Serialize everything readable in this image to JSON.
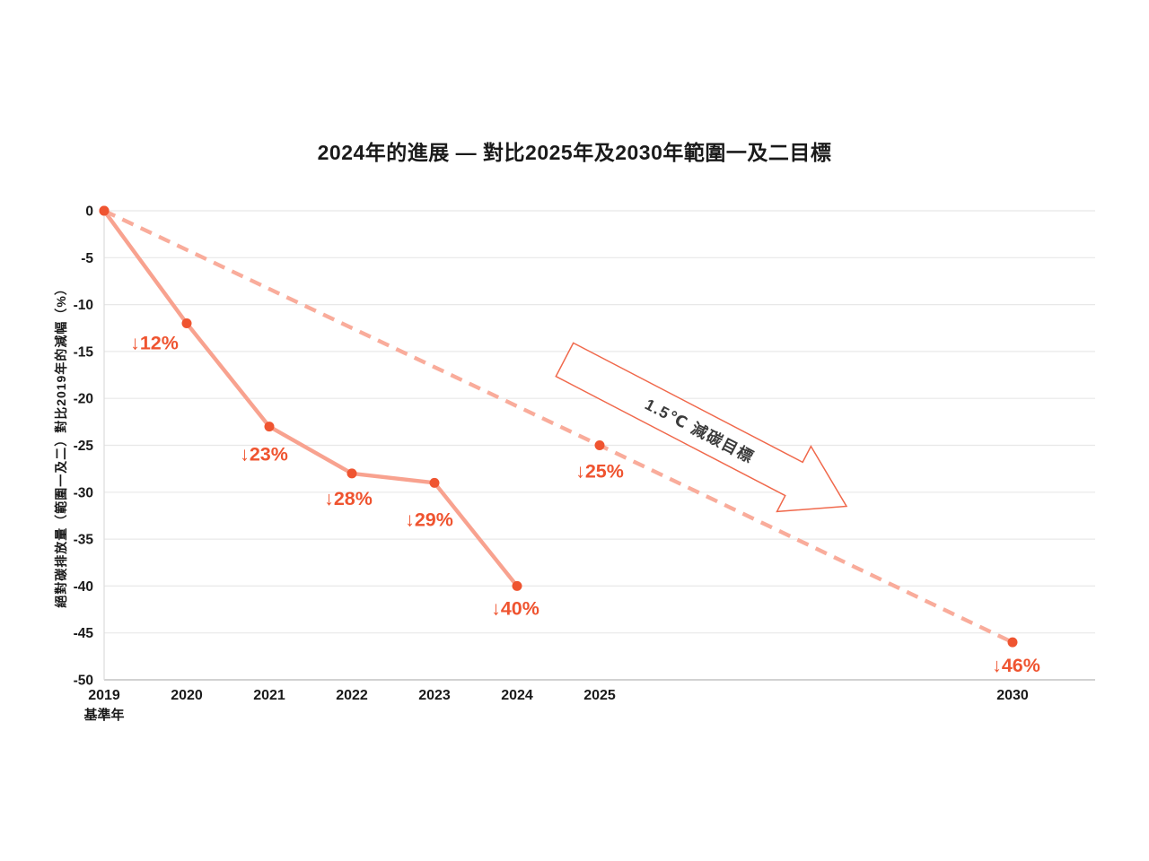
{
  "chart_data": {
    "type": "line",
    "title": "2024年的進展 — 對比2025年及2030年範圍一及二目標",
    "ylabel": "絕對碳排放量（範圍一及二）對比2019年的減幅（%）",
    "baseline_note": "基準年",
    "x_axis": {
      "ticks": [
        {
          "x": 2019,
          "label": "2019"
        },
        {
          "x": 2020,
          "label": "2020"
        },
        {
          "x": 2021,
          "label": "2021"
        },
        {
          "x": 2022,
          "label": "2022"
        },
        {
          "x": 2023,
          "label": "2023"
        },
        {
          "x": 2024,
          "label": "2024"
        },
        {
          "x": 2025,
          "label": "2025"
        },
        {
          "x": 2030,
          "label": "2030"
        }
      ]
    },
    "y_axis": {
      "min": -50,
      "max": 0,
      "ticks": [
        0,
        -5,
        -10,
        -15,
        -20,
        -25,
        -30,
        -35,
        -40,
        -45,
        -50
      ],
      "unit": "%"
    },
    "grid": true,
    "legend": "none",
    "series": [
      {
        "id": "actual",
        "line_style": "solid",
        "points": [
          {
            "x": 2019,
            "y": 0,
            "label": ""
          },
          {
            "x": 2020,
            "y": -12,
            "label": "↓12%"
          },
          {
            "x": 2021,
            "y": -23,
            "label": "↓23%"
          },
          {
            "x": 2022,
            "y": -28,
            "label": "↓28%"
          },
          {
            "x": 2023,
            "y": -29,
            "label": "↓29%"
          },
          {
            "x": 2024,
            "y": -40,
            "label": "↓40%"
          }
        ]
      },
      {
        "id": "target",
        "line_style": "dashed",
        "points": [
          {
            "x": 2019,
            "y": 0,
            "label": ""
          },
          {
            "x": 2025,
            "y": -25,
            "label": "↓25%"
          },
          {
            "x": 2030,
            "y": -46,
            "label": "↓46%"
          }
        ]
      }
    ],
    "annotation": {
      "text": "1.5℃ 減碳目標"
    },
    "colors": {
      "solid_line": "#F8A28F",
      "dashed_line": "#F9AC9B",
      "marker": "#EF5430",
      "point_label": "#EF5430",
      "grid": "#E8E8E8",
      "axis": "#C4C4C4",
      "spine": "#DDDDDD",
      "tick_text": "#1A1A1A",
      "annotation_outline": "#F0684B",
      "annotation_fill": "#FFFFFF",
      "annotation_text": "#3B3B3B"
    }
  }
}
